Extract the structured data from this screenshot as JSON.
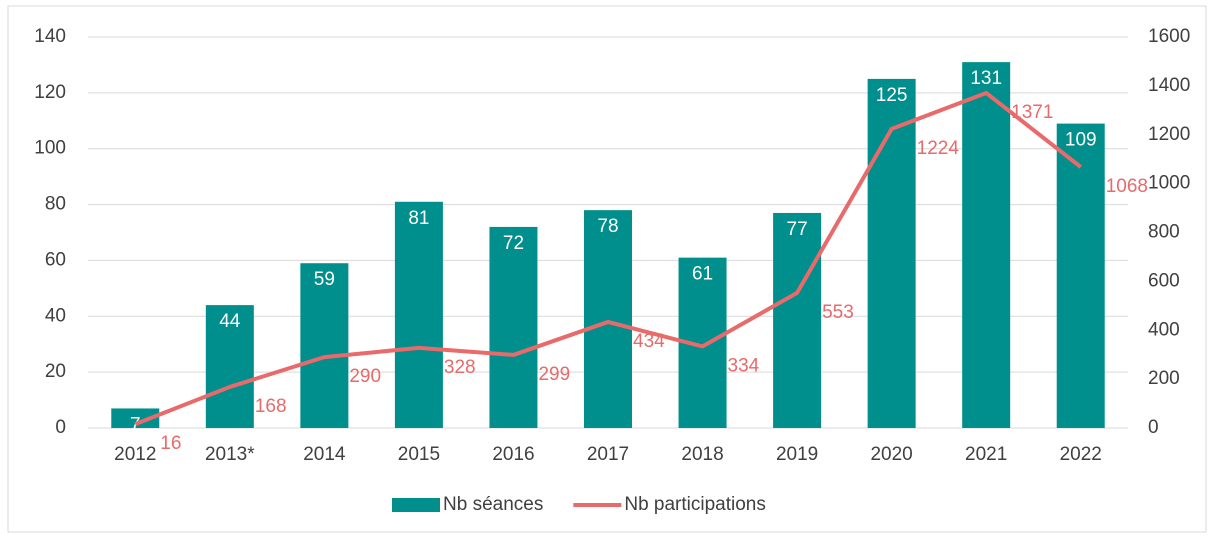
{
  "chart_data": {
    "type": "bar",
    "categories": [
      "2012",
      "2013*",
      "2014",
      "2015",
      "2016",
      "2017",
      "2018",
      "2019",
      "2020",
      "2021",
      "2022"
    ],
    "series": [
      {
        "name": "Nb séances",
        "type": "bar",
        "color": "#008f8c",
        "values": [
          7,
          44,
          59,
          81,
          72,
          78,
          61,
          77,
          125,
          131,
          109
        ]
      },
      {
        "name": "Nb participations",
        "type": "line",
        "axis": "y2",
        "color": "#e86a6a",
        "values": [
          16,
          168,
          290,
          328,
          299,
          434,
          334,
          553,
          1224,
          1371,
          1068
        ]
      }
    ],
    "ylim": [
      0,
      140
    ],
    "yticks": [
      0,
      20,
      40,
      60,
      80,
      100,
      120,
      140
    ],
    "y2lim": [
      0,
      1600
    ],
    "y2ticks": [
      0,
      200,
      400,
      600,
      800,
      1000,
      1200,
      1400,
      1600
    ],
    "grid": true,
    "legend": "bottom"
  }
}
